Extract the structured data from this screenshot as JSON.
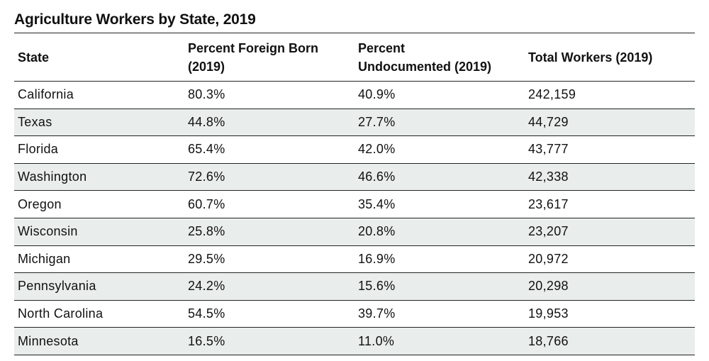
{
  "chart_data": {
    "type": "table",
    "title": "Agriculture Workers by State, 2019",
    "columns": [
      "State",
      "Percent Foreign Born (2019)",
      "Percent Undocumented (2019)",
      "Total Workers (2019)"
    ],
    "header_lines": [
      [
        "State"
      ],
      [
        "Percent Foreign Born",
        "(2019)"
      ],
      [
        "Percent",
        "Undocumented (2019)"
      ],
      [
        "Total Workers (2019)"
      ]
    ],
    "rows": [
      [
        "California",
        "80.3%",
        "40.9%",
        "242,159"
      ],
      [
        "Texas",
        "44.8%",
        "27.7%",
        "44,729"
      ],
      [
        "Florida",
        "65.4%",
        "42.0%",
        "43,777"
      ],
      [
        "Washington",
        "72.6%",
        "46.6%",
        "42,338"
      ],
      [
        "Oregon",
        "60.7%",
        "35.4%",
        "23,617"
      ],
      [
        "Wisconsin",
        "25.8%",
        "20.8%",
        "23,207"
      ],
      [
        "Michigan",
        "29.5%",
        "16.9%",
        "20,972"
      ],
      [
        "Pennsylvania",
        "24.2%",
        "15.6%",
        "20,298"
      ],
      [
        "North Carolina",
        "54.5%",
        "39.7%",
        "19,953"
      ],
      [
        "Minnesota",
        "16.5%",
        "11.0%",
        "18,766"
      ]
    ]
  },
  "colors": {
    "row_shade": "#e9edec",
    "rule": "#222222",
    "text": "#111111"
  }
}
